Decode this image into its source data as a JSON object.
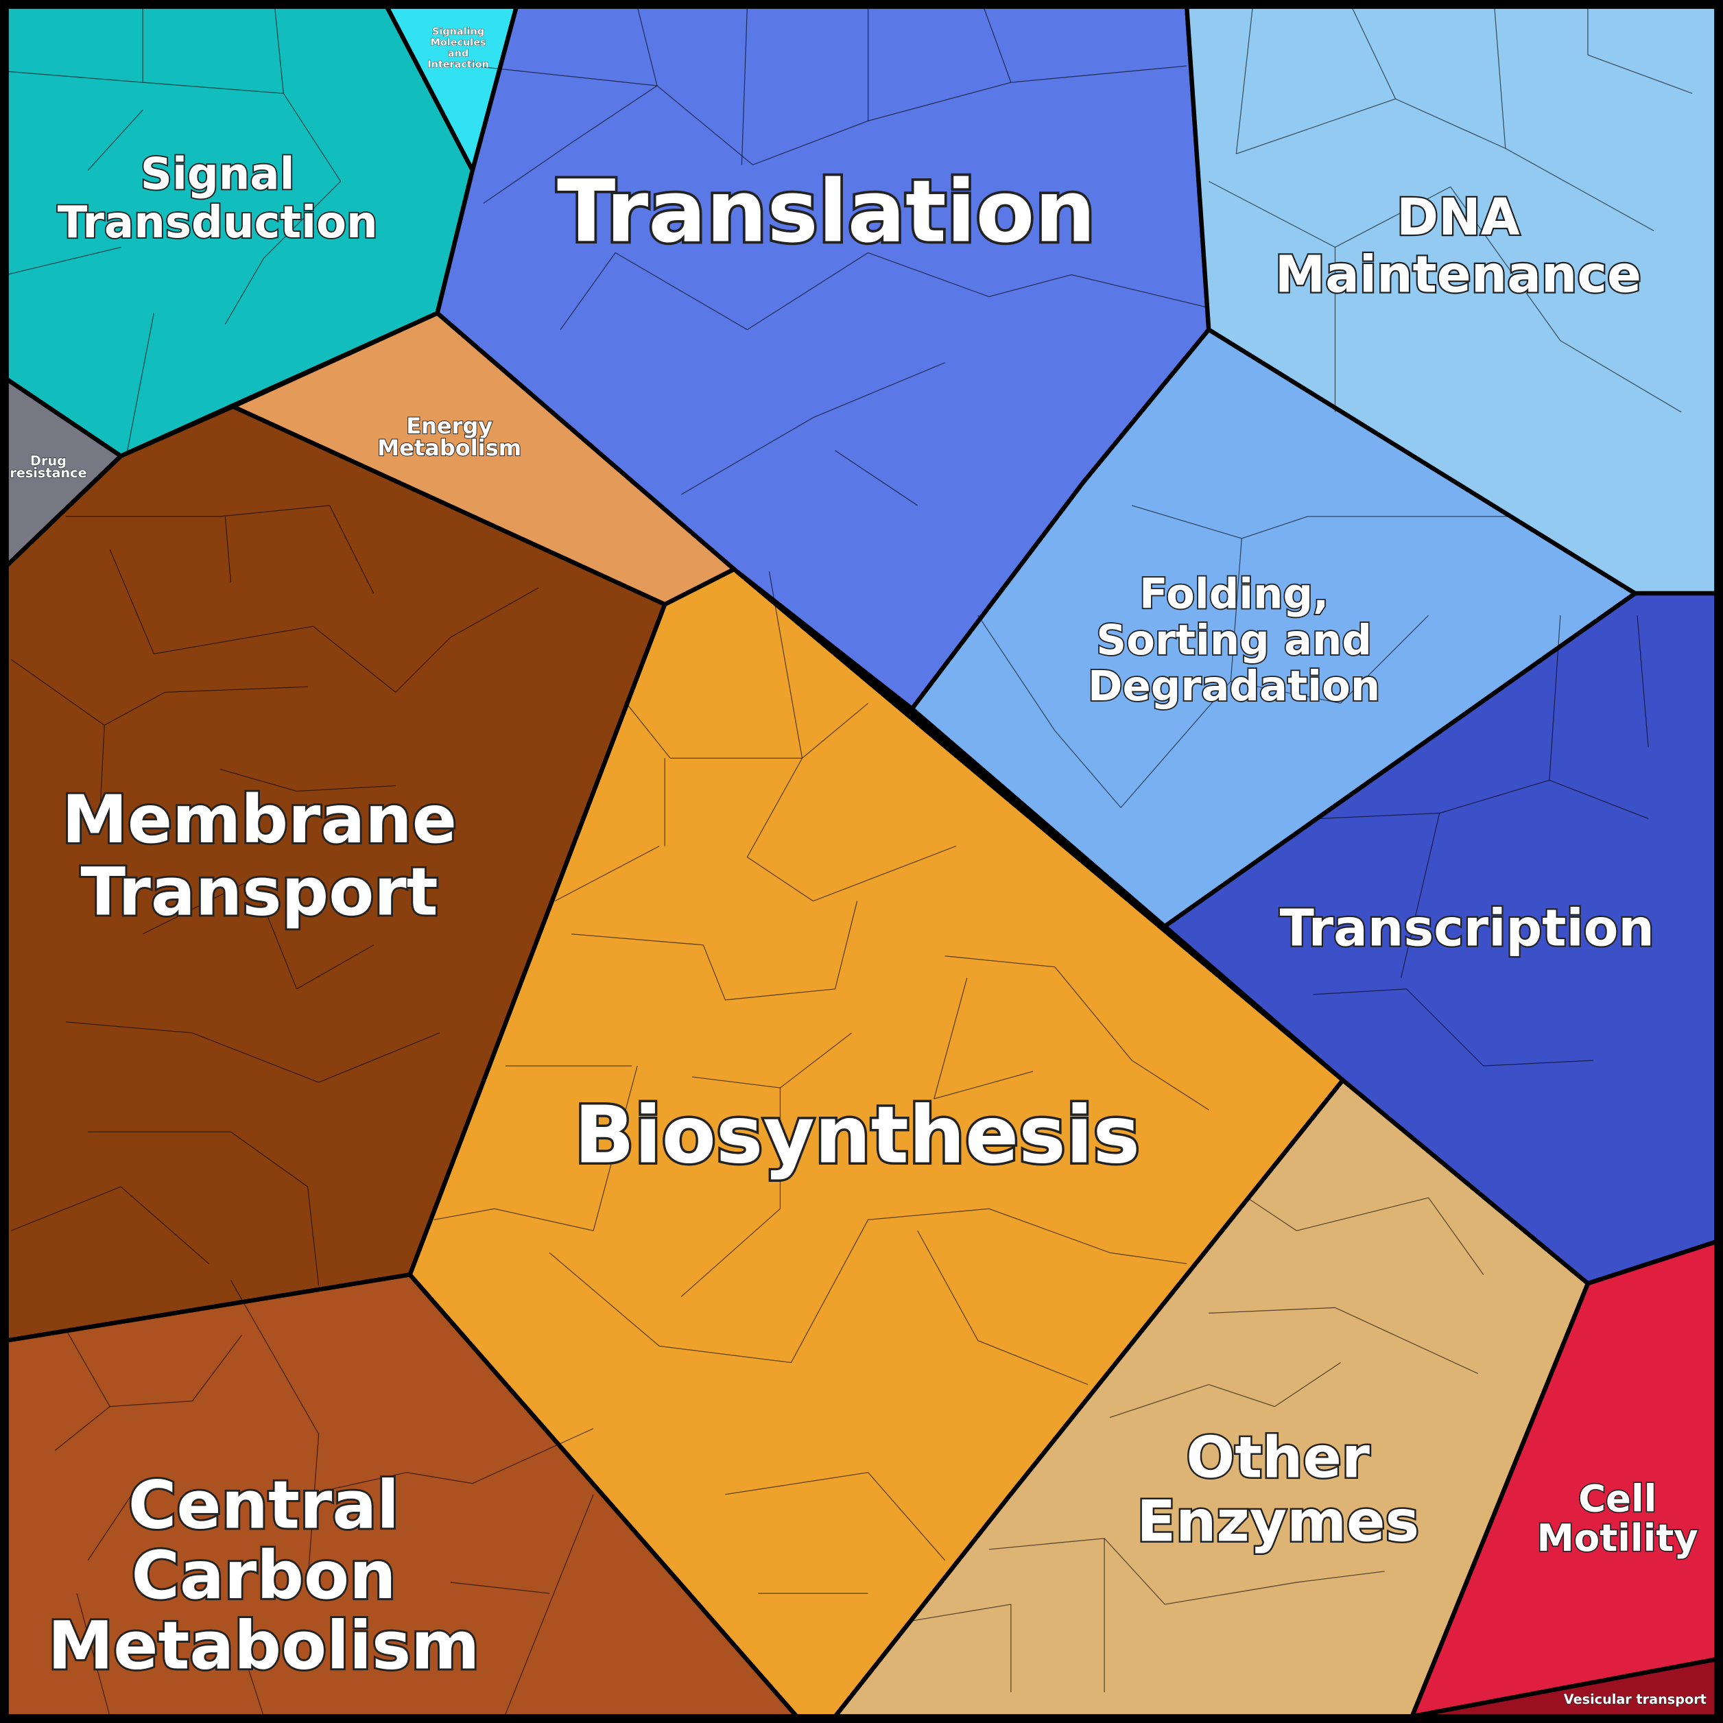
{
  "regions": [
    {
      "lines": [
        "Signal",
        "Transduction"
      ]
    },
    {
      "lines": [
        "Signaling",
        "Molecules",
        "and",
        "Interaction"
      ]
    },
    {
      "lines": [
        "Translation"
      ]
    },
    {
      "lines": [
        "DNA",
        "Maintenance"
      ]
    },
    {
      "lines": [
        "Drug",
        "resistance"
      ]
    },
    {
      "lines": [
        "Energy",
        "Metabolism"
      ]
    },
    {
      "lines": [
        "Folding,",
        "Sorting and",
        "Degradation"
      ]
    },
    {
      "lines": [
        "Membrane",
        "Transport"
      ]
    },
    {
      "lines": [
        "Transcription"
      ]
    },
    {
      "lines": [
        "Biosynthesis"
      ]
    },
    {
      "lines": [
        "Other",
        "Enzymes"
      ]
    },
    {
      "lines": [
        "Cell",
        "Motility"
      ]
    },
    {
      "lines": [
        "Central",
        "Carbon",
        "Metabolism"
      ]
    },
    {
      "lines": [
        "Vesicular transport"
      ]
    }
  ]
}
